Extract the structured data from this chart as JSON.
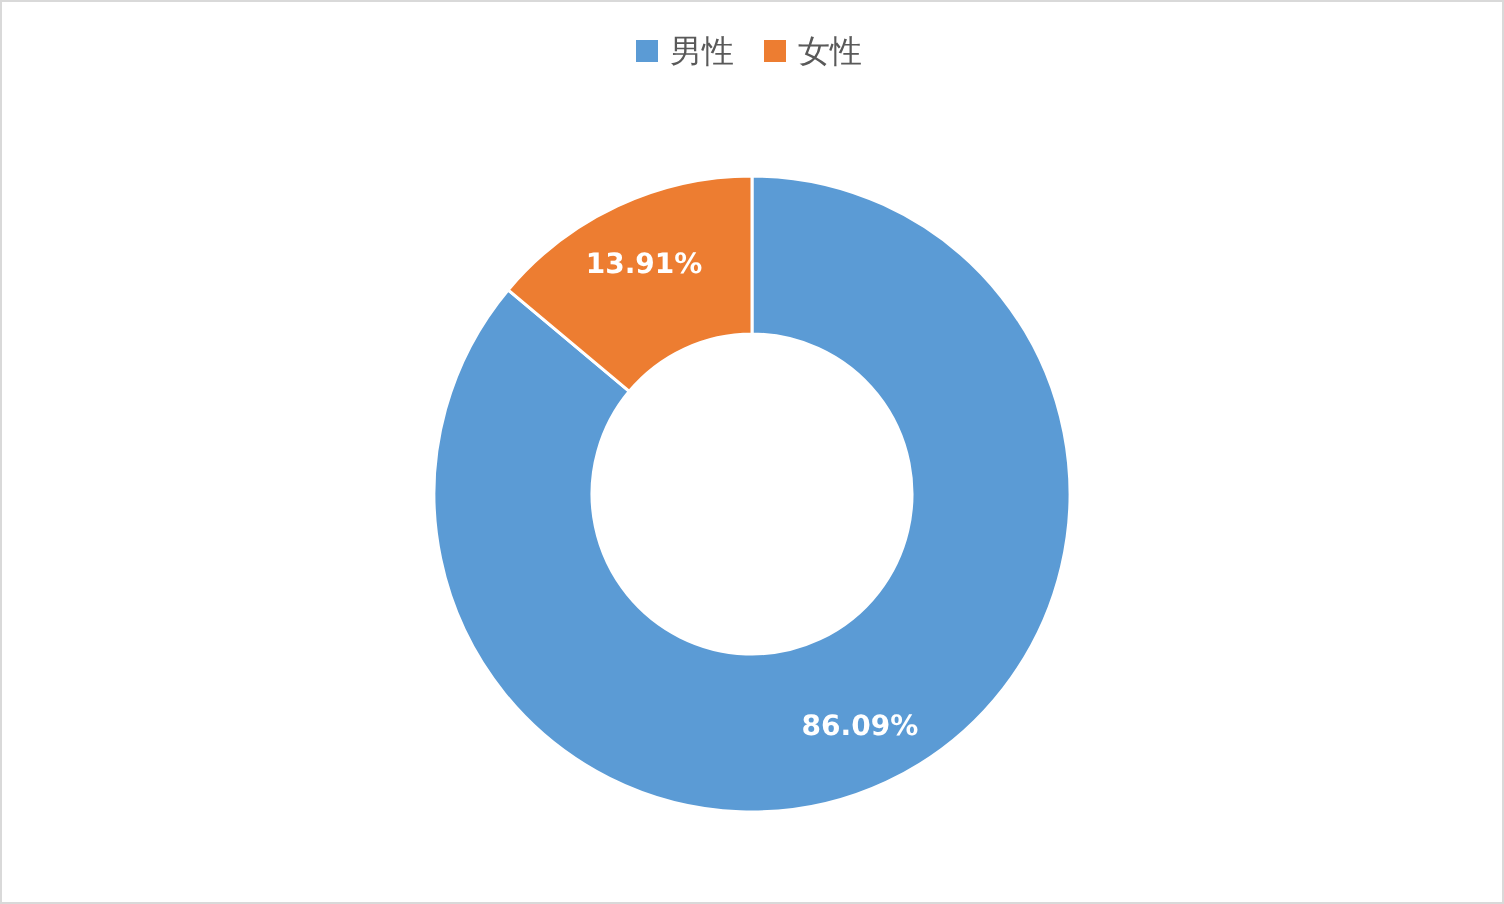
{
  "chart_data": {
    "type": "donut",
    "categories": [
      "男性",
      "女性"
    ],
    "values": [
      86.09,
      13.91
    ],
    "colors": [
      "#5b9bd5",
      "#ed7d31"
    ],
    "value_labels": [
      "86.09%",
      "13.91%"
    ],
    "legend": "top"
  }
}
